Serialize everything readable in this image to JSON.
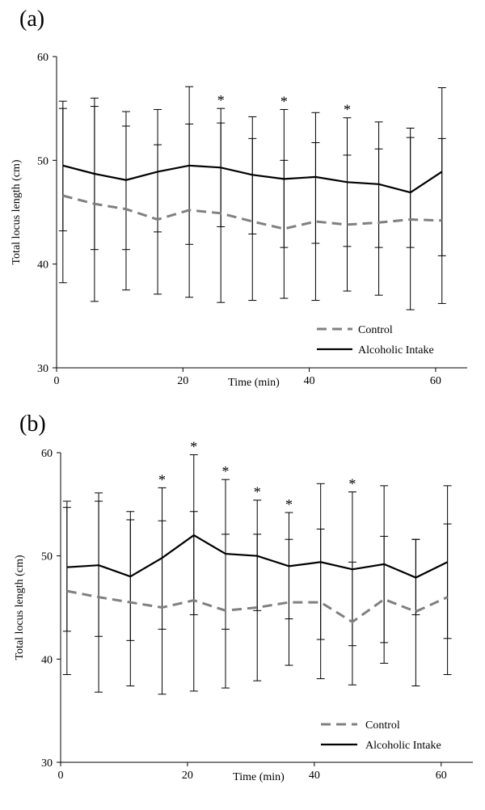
{
  "chart_data": [
    {
      "type": "line",
      "panel_label": "(a)",
      "xlabel": "Time (min)",
      "ylabel": "Total locus length (cm)",
      "xlim": [
        0,
        65
      ],
      "ylim": [
        30,
        60
      ],
      "x_ticks": [
        "0",
        "20",
        "40",
        "60"
      ],
      "y_ticks": [
        "30",
        "40",
        "50",
        "60"
      ],
      "grid": false,
      "legend_position": "bottom-right",
      "significance_marker": "*",
      "series": [
        {
          "name": "Control",
          "style": "dashed",
          "color": "#808080",
          "x": [
            1,
            6,
            11,
            16,
            21,
            26,
            31,
            36,
            41,
            46,
            51,
            56,
            61
          ],
          "values": [
            46.6,
            45.8,
            45.3,
            44.3,
            45.2,
            44.9,
            44.1,
            43.4,
            44.1,
            43.8,
            44.0,
            44.3,
            44.2
          ],
          "error_low": [
            38.2,
            36.4,
            37.5,
            37.1,
            36.8,
            36.3,
            36.5,
            36.7,
            36.5,
            37.4,
            37.0,
            35.6,
            36.2
          ],
          "error_high": [
            55.0,
            55.2,
            53.3,
            51.5,
            53.5,
            53.6,
            52.1,
            50.0,
            51.7,
            50.5,
            51.1,
            53.1,
            52.1
          ]
        },
        {
          "name": "Alcoholic Intake",
          "style": "solid",
          "color": "#000000",
          "x": [
            1,
            6,
            11,
            16,
            21,
            26,
            31,
            36,
            41,
            46,
            51,
            56,
            61
          ],
          "values": [
            49.5,
            48.7,
            48.1,
            48.9,
            49.5,
            49.3,
            48.6,
            48.2,
            48.4,
            47.9,
            47.7,
            46.9,
            48.9
          ],
          "error_low": [
            43.2,
            41.4,
            41.4,
            43.1,
            41.9,
            43.6,
            42.9,
            41.6,
            42.0,
            41.7,
            41.6,
            41.6,
            40.8
          ],
          "error_high": [
            55.7,
            56.0,
            54.7,
            54.9,
            57.1,
            55.0,
            54.2,
            54.9,
            54.6,
            54.1,
            53.7,
            52.2,
            57.0
          ],
          "significant": [
            false,
            false,
            false,
            false,
            false,
            true,
            false,
            true,
            false,
            true,
            false,
            false,
            false
          ]
        }
      ]
    },
    {
      "type": "line",
      "panel_label": "(b)",
      "xlabel": "Time (min)",
      "ylabel": "Total locus length (cm)",
      "xlim": [
        0,
        65
      ],
      "ylim": [
        30,
        60
      ],
      "x_ticks": [
        "0",
        "20",
        "40",
        "60"
      ],
      "y_ticks": [
        "30",
        "40",
        "50",
        "60"
      ],
      "grid": false,
      "legend_position": "bottom-right",
      "significance_marker": "*",
      "series": [
        {
          "name": "Control",
          "style": "dashed",
          "color": "#808080",
          "x": [
            1,
            6,
            11,
            16,
            21,
            26,
            31,
            36,
            41,
            46,
            51,
            56,
            61
          ],
          "values": [
            46.6,
            46.0,
            45.5,
            45.0,
            45.7,
            44.7,
            45.0,
            45.5,
            45.5,
            43.6,
            45.8,
            44.6,
            46.0
          ],
          "error_low": [
            38.5,
            36.8,
            37.4,
            36.6,
            36.9,
            37.2,
            37.9,
            39.4,
            38.1,
            37.5,
            39.6,
            37.4,
            38.5
          ],
          "error_high": [
            54.7,
            55.3,
            53.5,
            53.4,
            54.3,
            52.1,
            52.1,
            51.6,
            52.6,
            49.4,
            51.9,
            51.6,
            53.1
          ]
        },
        {
          "name": "Alcoholic Intake",
          "style": "solid",
          "color": "#000000",
          "x": [
            1,
            6,
            11,
            16,
            21,
            26,
            31,
            36,
            41,
            46,
            51,
            56,
            61
          ],
          "values": [
            48.9,
            49.1,
            48.0,
            49.8,
            52.0,
            50.2,
            50.0,
            49.0,
            49.4,
            48.7,
            49.2,
            47.9,
            49.4
          ],
          "error_low": [
            42.7,
            42.2,
            41.8,
            42.9,
            44.3,
            42.9,
            44.7,
            43.9,
            41.9,
            41.3,
            41.6,
            44.3,
            42.0
          ],
          "error_high": [
            55.3,
            56.1,
            54.3,
            56.6,
            59.8,
            57.4,
            55.4,
            54.2,
            57.0,
            56.2,
            56.8,
            51.6,
            56.8
          ],
          "significant": [
            false,
            false,
            false,
            true,
            true,
            true,
            true,
            true,
            false,
            true,
            false,
            false,
            false
          ]
        }
      ]
    }
  ]
}
